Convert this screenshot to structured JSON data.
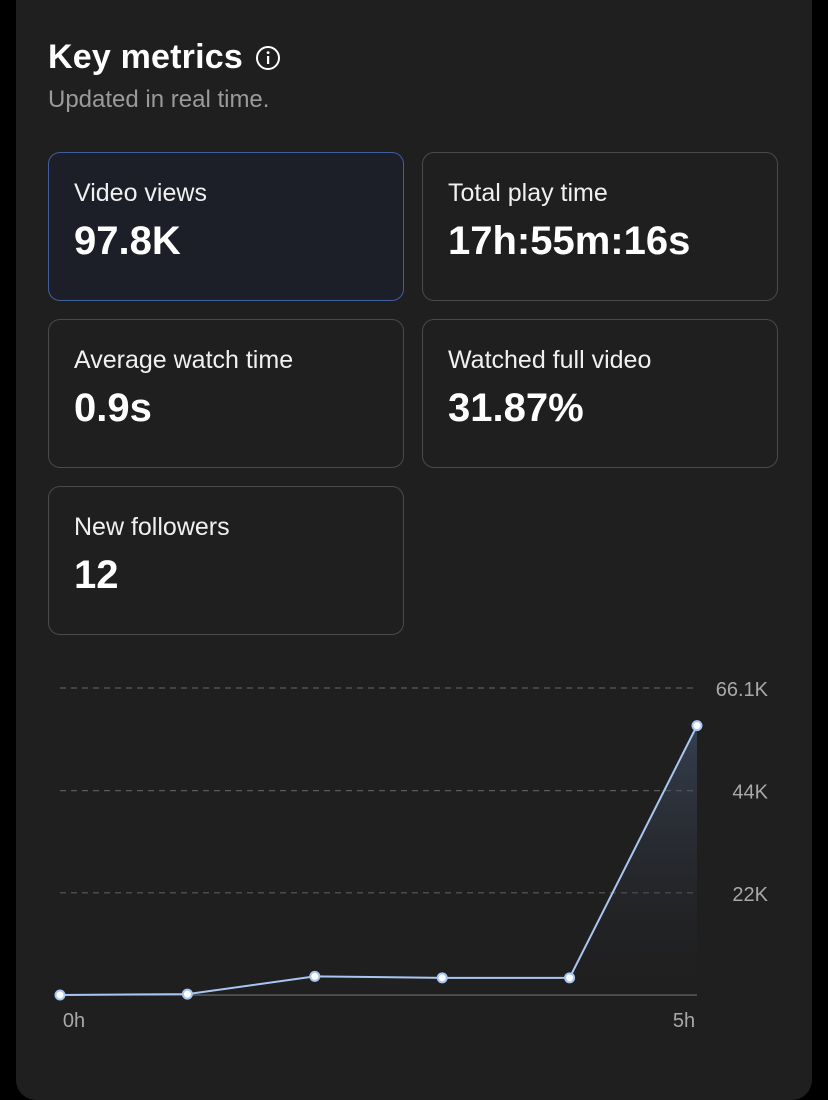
{
  "header": {
    "title": "Key metrics",
    "subtitle": "Updated in real time.",
    "info_icon": "info-circle-icon"
  },
  "metrics": [
    {
      "label": "Video views",
      "value": "97.8K",
      "selected": true
    },
    {
      "label": "Total play time",
      "value": "17h:55m:16s",
      "selected": false
    },
    {
      "label": "Average watch time",
      "value": "0.9s",
      "selected": false
    },
    {
      "label": "Watched full video",
      "value": "31.87%",
      "selected": false
    },
    {
      "label": "New followers",
      "value": "12",
      "selected": false
    }
  ],
  "colors": {
    "line": "#a9c6f2",
    "selected_border": "#3f5f9e",
    "card_border": "#4a4a4a",
    "grid": "#5a5a5a",
    "axis_text": "#a8a8a8"
  },
  "chart_data": {
    "type": "area",
    "x": [
      "0h",
      "1h",
      "2h",
      "3h",
      "4h",
      "5h"
    ],
    "series": [
      {
        "values": [
          0,
          200,
          4000,
          3700,
          3700,
          58000
        ]
      }
    ],
    "x_tick_labels": [
      "0h",
      "5h"
    ],
    "y_tick_labels": [
      "22K",
      "44K",
      "66.1K"
    ],
    "y_ticks": [
      22000,
      44000,
      66100
    ],
    "ylim": [
      0,
      66100
    ],
    "grid": true,
    "y_axis_position": "right"
  }
}
